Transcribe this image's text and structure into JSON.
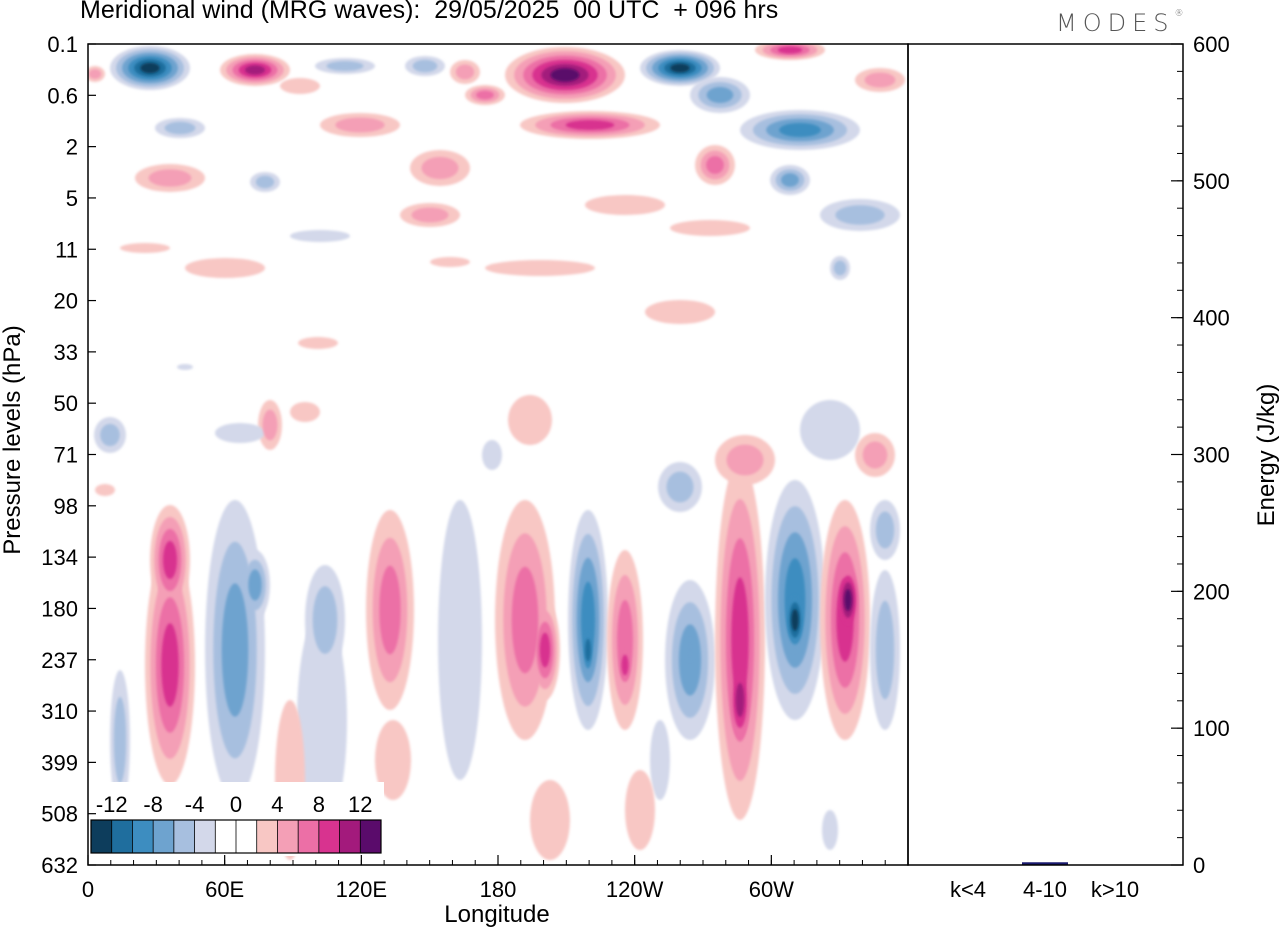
{
  "title": "Meridional wind (MRG waves):  29/05/2025  00 UTC  + 096 hrs",
  "logo": "MODES",
  "logo_mark": "®",
  "chart_data": {
    "type": "heatmap",
    "title": "Meridional wind (MRG waves):  29/05/2025  00 UTC  + 096 hrs",
    "xlabel": "Longitude",
    "ylabel": "Pressure levels (hPa)",
    "x_ticks": [
      "0",
      "60E",
      "120E",
      "180",
      "120W",
      "60W"
    ],
    "y_ticks": [
      "0.1",
      "0.6",
      "2",
      "5",
      "11",
      "20",
      "33",
      "50",
      "71",
      "98",
      "134",
      "180",
      "237",
      "310",
      "399",
      "508",
      "632"
    ],
    "colorbar": {
      "labels": [
        "-12",
        "-8",
        "-4",
        "0",
        "4",
        "8",
        "12"
      ],
      "colors": [
        "#0d3d5c",
        "#1f6e9e",
        "#3d8dc0",
        "#6ea3cf",
        "#a7bfdf",
        "#d3d8ea",
        "#ffffff",
        "#ffffff",
        "#f8c7c4",
        "#f49fb6",
        "#ec6fa6",
        "#d8338f",
        "#a31a7c",
        "#5a0b6b"
      ]
    },
    "energy_panel": {
      "type": "bar",
      "ylabel": "Energy (J/kg)",
      "categories": [
        "k<4",
        "4-10",
        "k>10"
      ],
      "values": [
        0,
        2,
        0
      ],
      "ylim": [
        0,
        600
      ],
      "y_ticks": [
        "0",
        "100",
        "200",
        "300",
        "400",
        "500",
        "600"
      ],
      "bar_color": "#1a1a6e"
    }
  }
}
